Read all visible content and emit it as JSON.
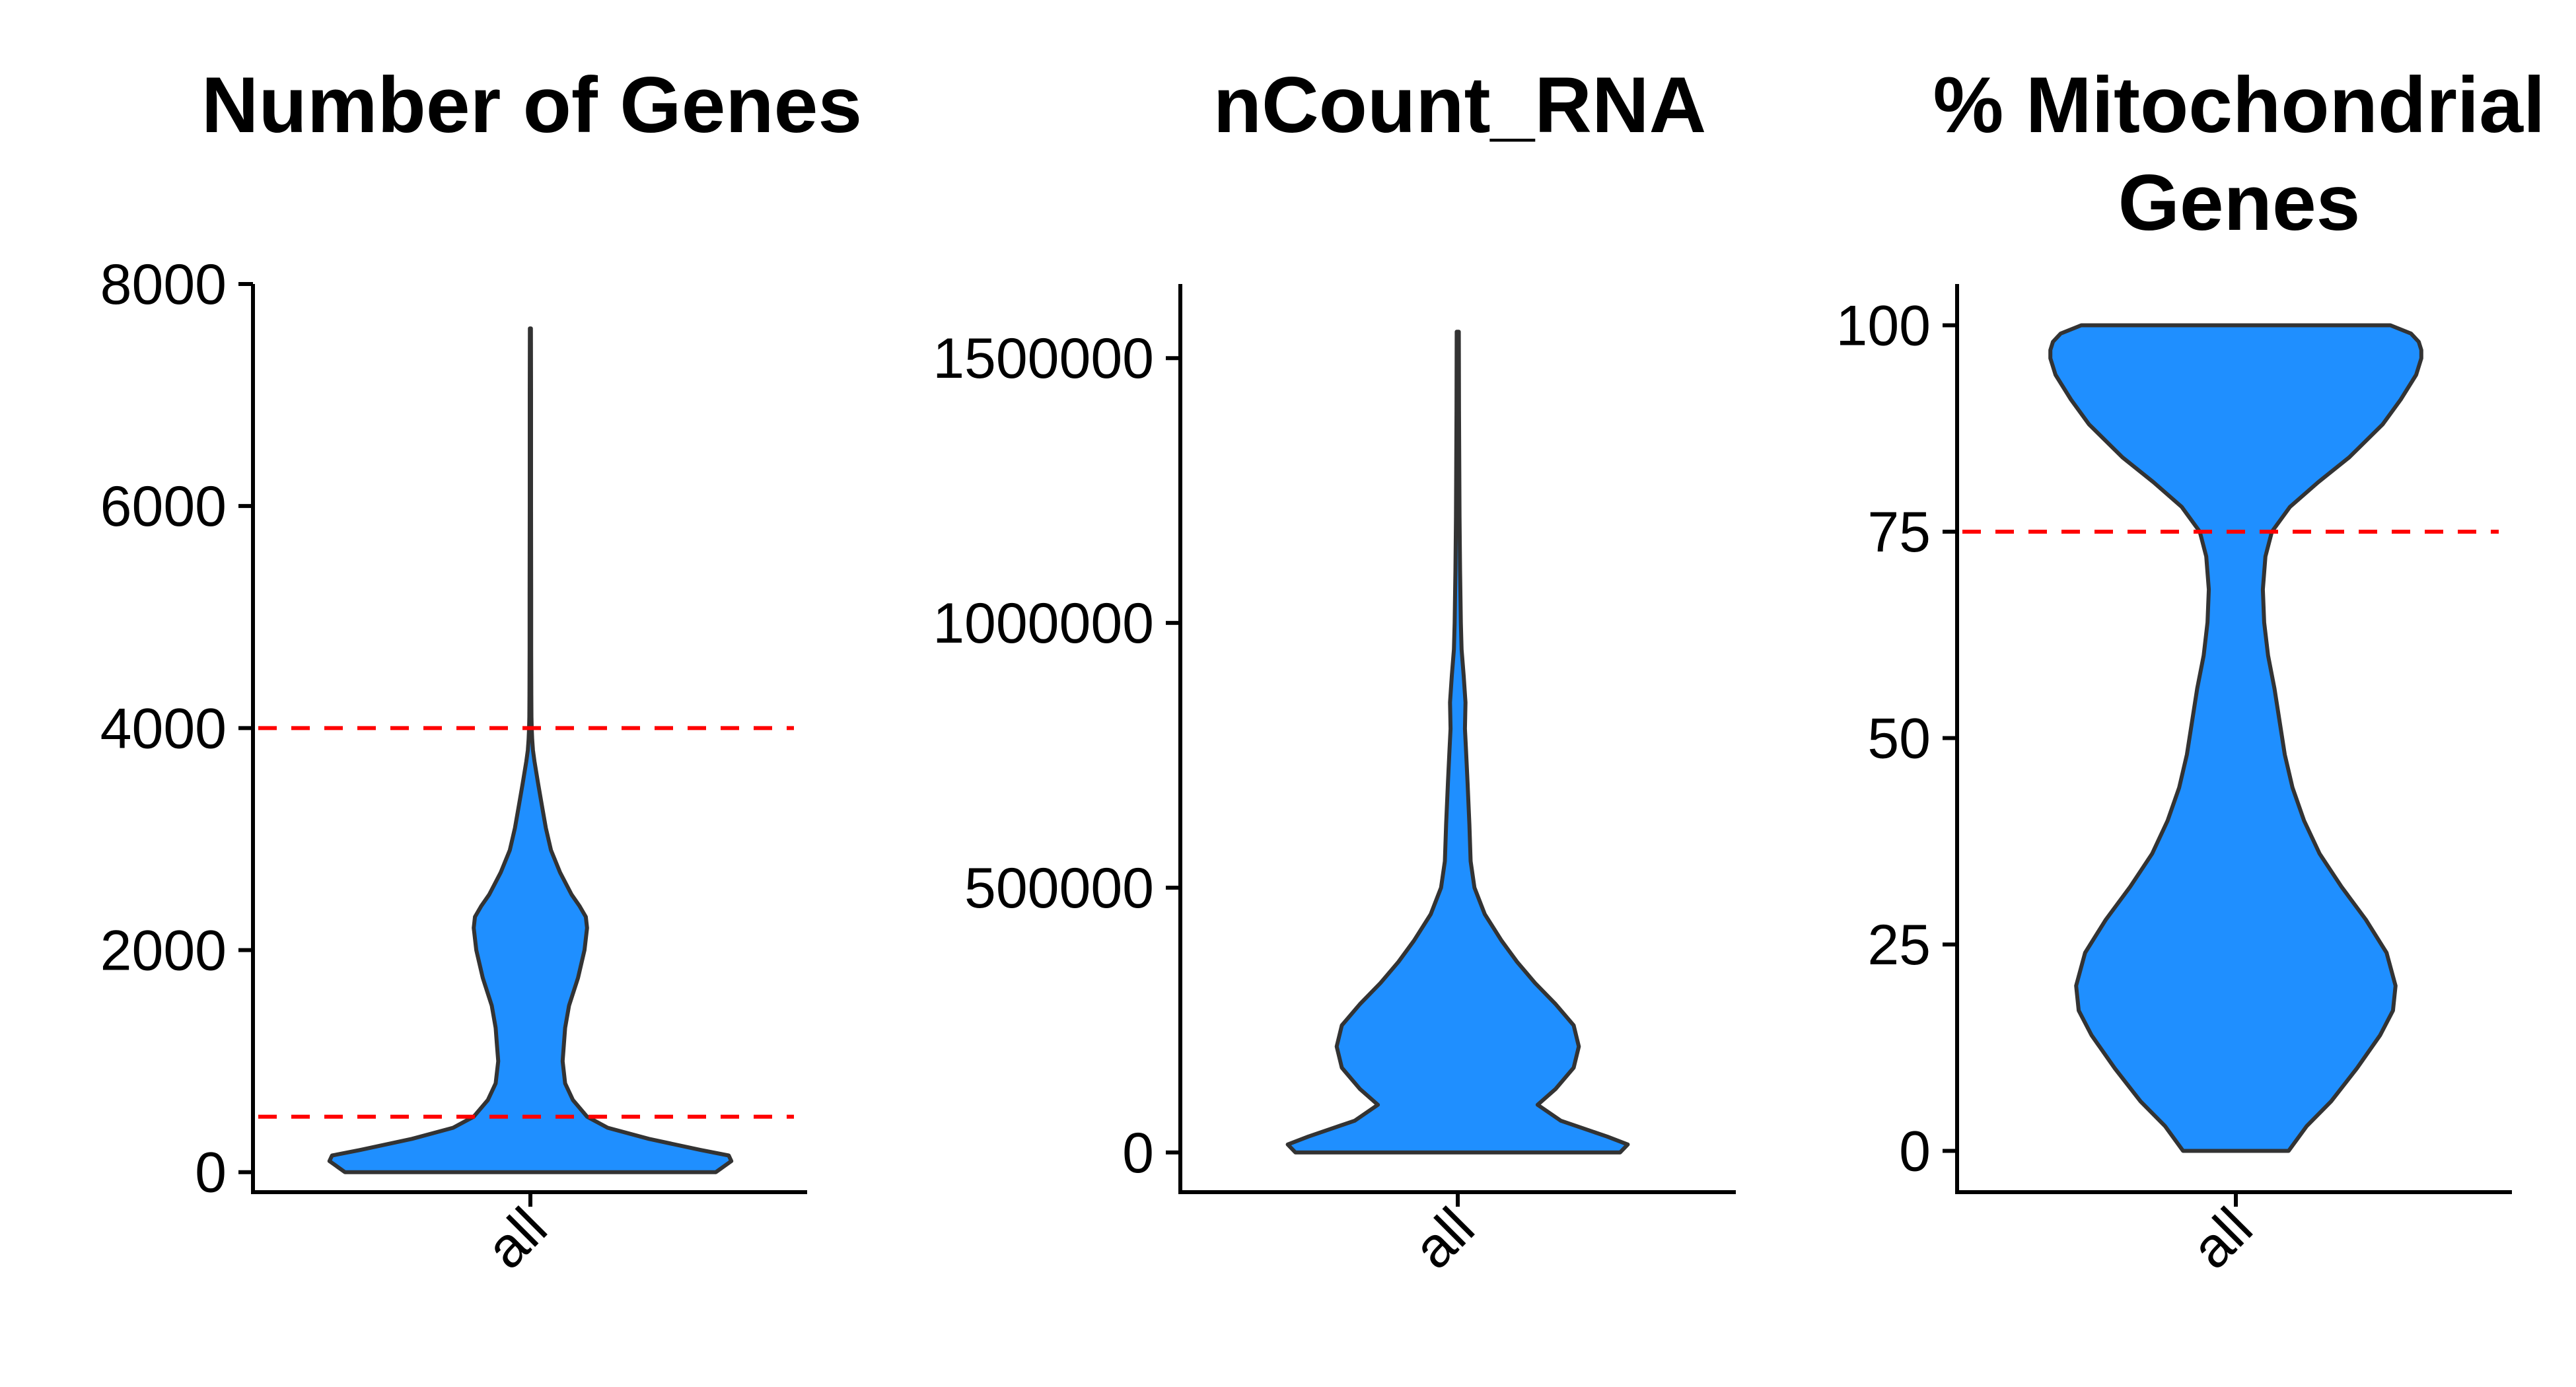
{
  "colors": {
    "violin_fill": "#1F8FFF",
    "violin_outline": "#333333",
    "threshold": "#FF0000",
    "axis": "#000000"
  },
  "chart_data": [
    {
      "type": "violin",
      "title": "Number of Genes",
      "categories": [
        "all"
      ],
      "ylim": [
        -180,
        8000
      ],
      "yticks": [
        0,
        2000,
        4000,
        6000,
        8000
      ],
      "ytick_labels": [
        "0",
        "2000",
        "4000",
        "6000",
        "8000"
      ],
      "thresholds": [
        500,
        4000
      ],
      "violin": {
        "y": [
          0,
          100,
          150,
          200,
          300,
          400,
          500,
          650,
          800,
          1000,
          1150,
          1300,
          1500,
          1750,
          2000,
          2200,
          2300,
          2400,
          2500,
          2700,
          2900,
          3100,
          3300,
          3500,
          3700,
          3800,
          3900,
          4000,
          4100,
          4300,
          4700,
          5200,
          6000,
          7000,
          7600
        ],
        "half_width": [
          0.72,
          0.78,
          0.77,
          0.66,
          0.46,
          0.3,
          0.22,
          0.165,
          0.135,
          0.125,
          0.13,
          0.135,
          0.15,
          0.185,
          0.21,
          0.22,
          0.215,
          0.19,
          0.16,
          0.115,
          0.08,
          0.06,
          0.045,
          0.03,
          0.016,
          0.01,
          0.007,
          0.005,
          0.004,
          0.0035,
          0.003,
          0.003,
          0.0025,
          0.0025,
          0.002
        ]
      }
    },
    {
      "type": "violin",
      "title": "nCount_RNA",
      "categories": [
        "all"
      ],
      "ylim": [
        -75000,
        1640000
      ],
      "yticks": [
        0,
        500000,
        1000000,
        1500000
      ],
      "ytick_labels": [
        "0",
        "500000",
        "1000000",
        "1500000"
      ],
      "thresholds": [],
      "violin": {
        "y": [
          0,
          15000,
          30000,
          60000,
          90000,
          120000,
          160000,
          200000,
          240000,
          280000,
          320000,
          360000,
          400000,
          450000,
          500000,
          550000,
          620000,
          700000,
          760000,
          800000,
          850000,
          900000,
          950000,
          1000000,
          1100000,
          1200000,
          1300000,
          1400000,
          1550000
        ],
        "half_width": [
          0.63,
          0.66,
          0.58,
          0.4,
          0.31,
          0.38,
          0.45,
          0.47,
          0.45,
          0.38,
          0.3,
          0.23,
          0.17,
          0.105,
          0.065,
          0.05,
          0.045,
          0.038,
          0.032,
          0.028,
          0.03,
          0.023,
          0.015,
          0.012,
          0.009,
          0.007,
          0.006,
          0.005,
          0.004
        ]
      }
    },
    {
      "type": "violin",
      "title": "% Mitochondrial\nGenes",
      "categories": [
        "all"
      ],
      "ylim": [
        -5,
        105
      ],
      "yticks": [
        0,
        25,
        50,
        75,
        100
      ],
      "ytick_labels": [
        "0",
        "25",
        "50",
        "75",
        "100"
      ],
      "thresholds": [
        75
      ],
      "violin": {
        "y": [
          0,
          3,
          6,
          10,
          14,
          17,
          20,
          24,
          28,
          32,
          36,
          40,
          44,
          48,
          52,
          56,
          60,
          64,
          68,
          72,
          75,
          78,
          81,
          84,
          88,
          91,
          94,
          96,
          97,
          98,
          99,
          100
        ],
        "half_width": [
          0.205,
          0.275,
          0.37,
          0.47,
          0.56,
          0.61,
          0.62,
          0.585,
          0.505,
          0.41,
          0.325,
          0.265,
          0.22,
          0.19,
          0.17,
          0.15,
          0.125,
          0.11,
          0.105,
          0.115,
          0.14,
          0.21,
          0.32,
          0.44,
          0.57,
          0.64,
          0.7,
          0.72,
          0.72,
          0.71,
          0.68,
          0.6
        ]
      }
    }
  ]
}
